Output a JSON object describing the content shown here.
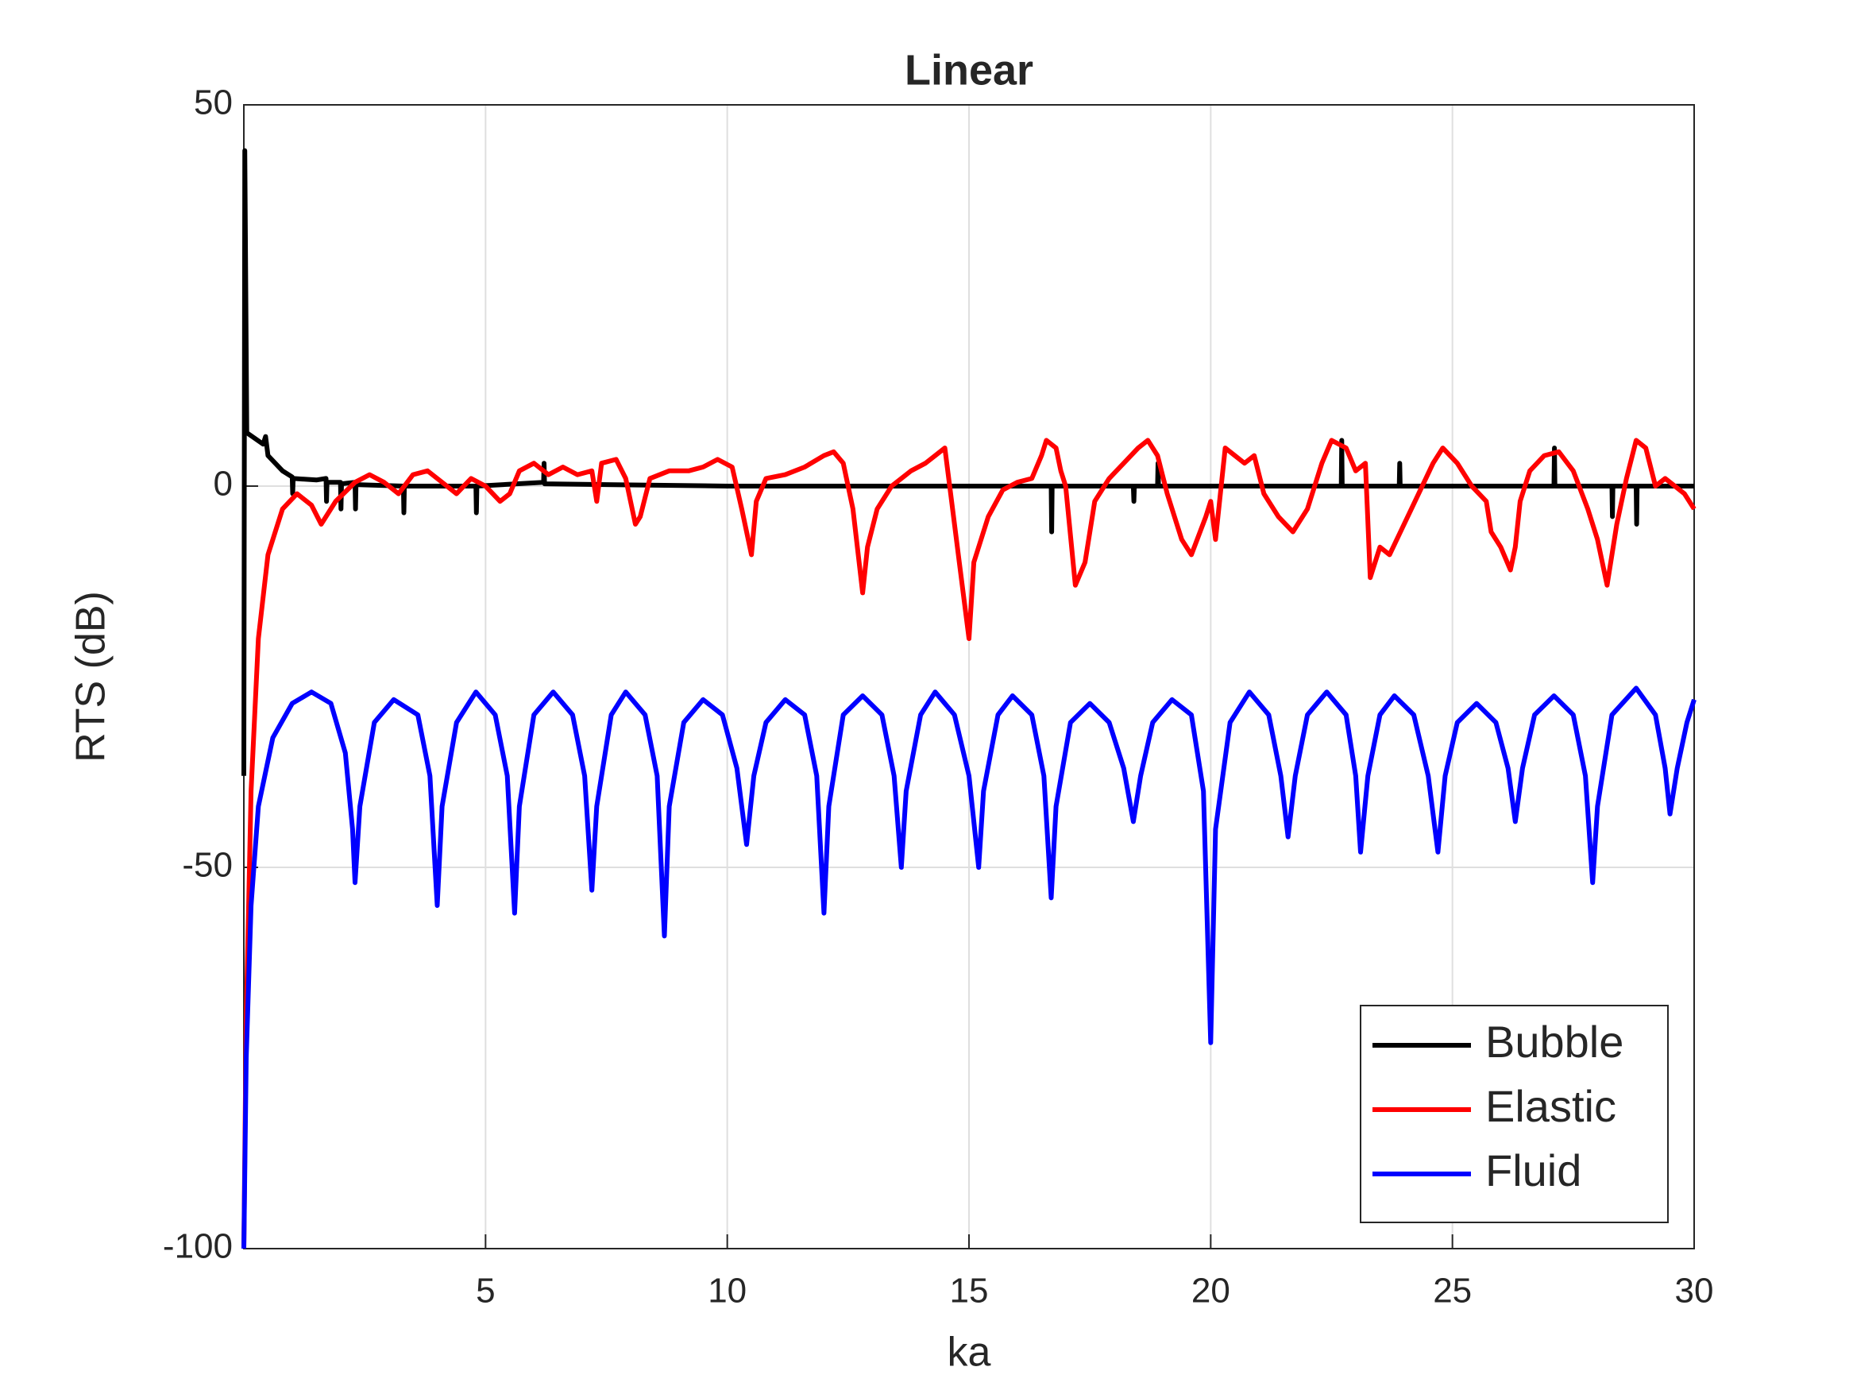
{
  "chart_data": {
    "type": "line",
    "title": "Linear",
    "x_label": "ka",
    "y_label": "RTS (dB)",
    "xlim": [
      0,
      30
    ],
    "xticks": [
      5,
      10,
      15,
      20,
      25,
      30
    ],
    "ylim": [
      -100,
      50
    ],
    "yticks": [
      50,
      0,
      -50,
      -100
    ],
    "grid": true,
    "legend": "lower right",
    "series": [
      {
        "name": "Bubble",
        "color": "#000000",
        "x": [
          0,
          0.02,
          0.06,
          0.4,
          0.45,
          0.5,
          0.8,
          1.0,
          1.01,
          1.02,
          1.5,
          1.7,
          1.71,
          1.72,
          2.0,
          2.01,
          2.02,
          2.3,
          2.31,
          2.32,
          3.3,
          3.31,
          3.32,
          4.8,
          4.81,
          4.82,
          6.2,
          6.21,
          6.22,
          10,
          12.5,
          16.7,
          16.71,
          16.72,
          18.4,
          18.41,
          18.42,
          18.9,
          18.91,
          18.92,
          22.7,
          22.71,
          22.72,
          23.9,
          23.91,
          23.92,
          27.1,
          27.11,
          27.12,
          28.3,
          28.31,
          28.32,
          28.8,
          28.81,
          28.82,
          30
        ],
        "values": [
          -38,
          44,
          7,
          5.5,
          6.5,
          4,
          2,
          1.2,
          -1,
          1,
          0.8,
          1,
          -2,
          0.5,
          0.5,
          -3,
          0.3,
          0.5,
          -3,
          0.2,
          0,
          -3.5,
          0,
          0,
          -3.5,
          0,
          0.5,
          3,
          0.3,
          0,
          0,
          0,
          -6,
          0,
          0,
          -2,
          0,
          0,
          3,
          0,
          0,
          6,
          0,
          0,
          3,
          0,
          0,
          5,
          0,
          0,
          -4,
          0,
          0,
          -5,
          0,
          0
        ]
      },
      {
        "name": "Elastic",
        "color": "#ff0000",
        "x": [
          0,
          0.05,
          0.15,
          0.3,
          0.5,
          0.8,
          1.1,
          1.4,
          1.6,
          1.9,
          2.3,
          2.6,
          2.9,
          3.2,
          3.5,
          3.8,
          4.1,
          4.4,
          4.7,
          5.0,
          5.3,
          5.5,
          5.7,
          6.0,
          6.3,
          6.6,
          6.9,
          7.2,
          7.3,
          7.4,
          7.7,
          7.9,
          8.1,
          8.2,
          8.4,
          8.8,
          9.2,
          9.5,
          9.8,
          10.1,
          10.3,
          10.5,
          10.6,
          10.8,
          11.2,
          11.6,
          12.0,
          12.2,
          12.4,
          12.6,
          12.8,
          12.9,
          13.1,
          13.4,
          13.8,
          14.1,
          14.3,
          14.5,
          14.6,
          14.8,
          15.0,
          15.1,
          15.4,
          15.7,
          16.0,
          16.3,
          16.5,
          16.6,
          16.8,
          16.9,
          17.0,
          17.2,
          17.4,
          17.6,
          17.9,
          18.2,
          18.5,
          18.7,
          18.9,
          19.1,
          19.4,
          19.6,
          19.9,
          20.0,
          20.1,
          20.2,
          20.3,
          20.5,
          20.7,
          20.9,
          21.1,
          21.4,
          21.7,
          22.0,
          22.3,
          22.5,
          22.8,
          23.0,
          23.2,
          23.3,
          23.5,
          23.7,
          24.0,
          24.3,
          24.6,
          24.8,
          25.1,
          25.4,
          25.7,
          25.8,
          26.0,
          26.2,
          26.3,
          26.4,
          26.6,
          26.9,
          27.2,
          27.5,
          27.8,
          28.0,
          28.2,
          28.4,
          28.6,
          28.8,
          29.0,
          29.2,
          29.4,
          29.6,
          29.8,
          30
        ],
        "values": [
          -100,
          -70,
          -40,
          -20,
          -9,
          -3,
          -1,
          -2.5,
          -5,
          -2,
          0.5,
          1.5,
          0.5,
          -1,
          1.5,
          2,
          0.5,
          -1,
          1,
          0,
          -2,
          -1,
          2,
          3,
          1.5,
          2.5,
          1.5,
          2,
          -2,
          3,
          3.5,
          1,
          -5,
          -4,
          1,
          2,
          2,
          2.5,
          3.5,
          2.5,
          -3,
          -9,
          -2,
          1,
          1.5,
          2.5,
          4,
          4.5,
          3,
          -3,
          -14,
          -8,
          -3,
          0,
          2,
          3,
          4,
          5,
          0,
          -10,
          -20,
          -10,
          -4,
          -0.5,
          0.5,
          1,
          4,
          6,
          5,
          2,
          0,
          -13,
          -10,
          -2,
          1,
          3,
          5,
          6,
          4,
          -1,
          -7,
          -9,
          -4,
          -2,
          -7,
          -1,
          5,
          4,
          3,
          4,
          -1,
          -4,
          -6,
          -3,
          3,
          6,
          5,
          2,
          3,
          -12,
          -8,
          -9,
          -5,
          -1,
          3,
          5,
          3,
          0,
          -2,
          -6,
          -8,
          -11,
          -8,
          -2,
          2,
          4,
          4.5,
          2,
          -3,
          -7,
          -13,
          -5,
          1,
          6,
          5,
          0,
          1,
          0,
          -1,
          -3
        ]
      },
      {
        "name": "Fluid",
        "color": "#0000ff",
        "x": [
          0,
          0.05,
          0.15,
          0.3,
          0.6,
          1.0,
          1.4,
          1.8,
          2.1,
          2.25,
          2.3,
          2.4,
          2.7,
          3.1,
          3.6,
          3.85,
          4.0,
          4.1,
          4.4,
          4.8,
          5.2,
          5.45,
          5.6,
          5.7,
          6.0,
          6.4,
          6.8,
          7.05,
          7.2,
          7.3,
          7.6,
          7.9,
          8.3,
          8.55,
          8.7,
          8.8,
          9.1,
          9.5,
          9.9,
          10.2,
          10.4,
          10.55,
          10.8,
          11.2,
          11.6,
          11.85,
          12.0,
          12.1,
          12.4,
          12.8,
          13.2,
          13.45,
          13.6,
          13.7,
          14.0,
          14.3,
          14.7,
          15.0,
          15.2,
          15.3,
          15.6,
          15.9,
          16.3,
          16.55,
          16.7,
          16.8,
          17.1,
          17.5,
          17.9,
          18.2,
          18.4,
          18.55,
          18.8,
          19.2,
          19.6,
          19.85,
          20.0,
          20.1,
          20.4,
          20.8,
          21.2,
          21.45,
          21.6,
          21.75,
          22.0,
          22.4,
          22.8,
          23.0,
          23.1,
          23.25,
          23.5,
          23.8,
          24.2,
          24.5,
          24.7,
          24.85,
          25.1,
          25.5,
          25.9,
          26.15,
          26.3,
          26.45,
          26.7,
          27.1,
          27.5,
          27.75,
          27.9,
          28.0,
          28.3,
          28.8,
          29.2,
          29.4,
          29.5,
          29.65,
          29.85,
          30
        ],
        "values": [
          -100,
          -75,
          -55,
          -42,
          -33,
          -28.5,
          -27,
          -28.5,
          -35,
          -45,
          -52,
          -42,
          -31,
          -28,
          -30,
          -38,
          -55,
          -42,
          -31,
          -27,
          -30,
          -38,
          -56,
          -42,
          -30,
          -27,
          -30,
          -38,
          -53,
          -42,
          -30,
          -27,
          -30,
          -38,
          -59,
          -42,
          -31,
          -28,
          -30,
          -37,
          -47,
          -38,
          -31,
          -28,
          -30,
          -38,
          -56,
          -42,
          -30,
          -27.5,
          -30,
          -38,
          -50,
          -40,
          -30,
          -27,
          -30,
          -38,
          -50,
          -40,
          -30,
          -27.5,
          -30,
          -38,
          -54,
          -42,
          -31,
          -28.5,
          -31,
          -37,
          -44,
          -38,
          -31,
          -28,
          -30,
          -40,
          -73,
          -45,
          -31,
          -27,
          -30,
          -38,
          -46,
          -38,
          -30,
          -27,
          -30,
          -38,
          -48,
          -38,
          -30,
          -27.5,
          -30,
          -38,
          -48,
          -38,
          -31,
          -28.5,
          -31,
          -37,
          -44,
          -37,
          -30,
          -27.5,
          -30,
          -38,
          -52,
          -42,
          -30,
          -26.5,
          -30,
          -37,
          -43,
          -37,
          -31,
          -28
        ]
      }
    ]
  }
}
